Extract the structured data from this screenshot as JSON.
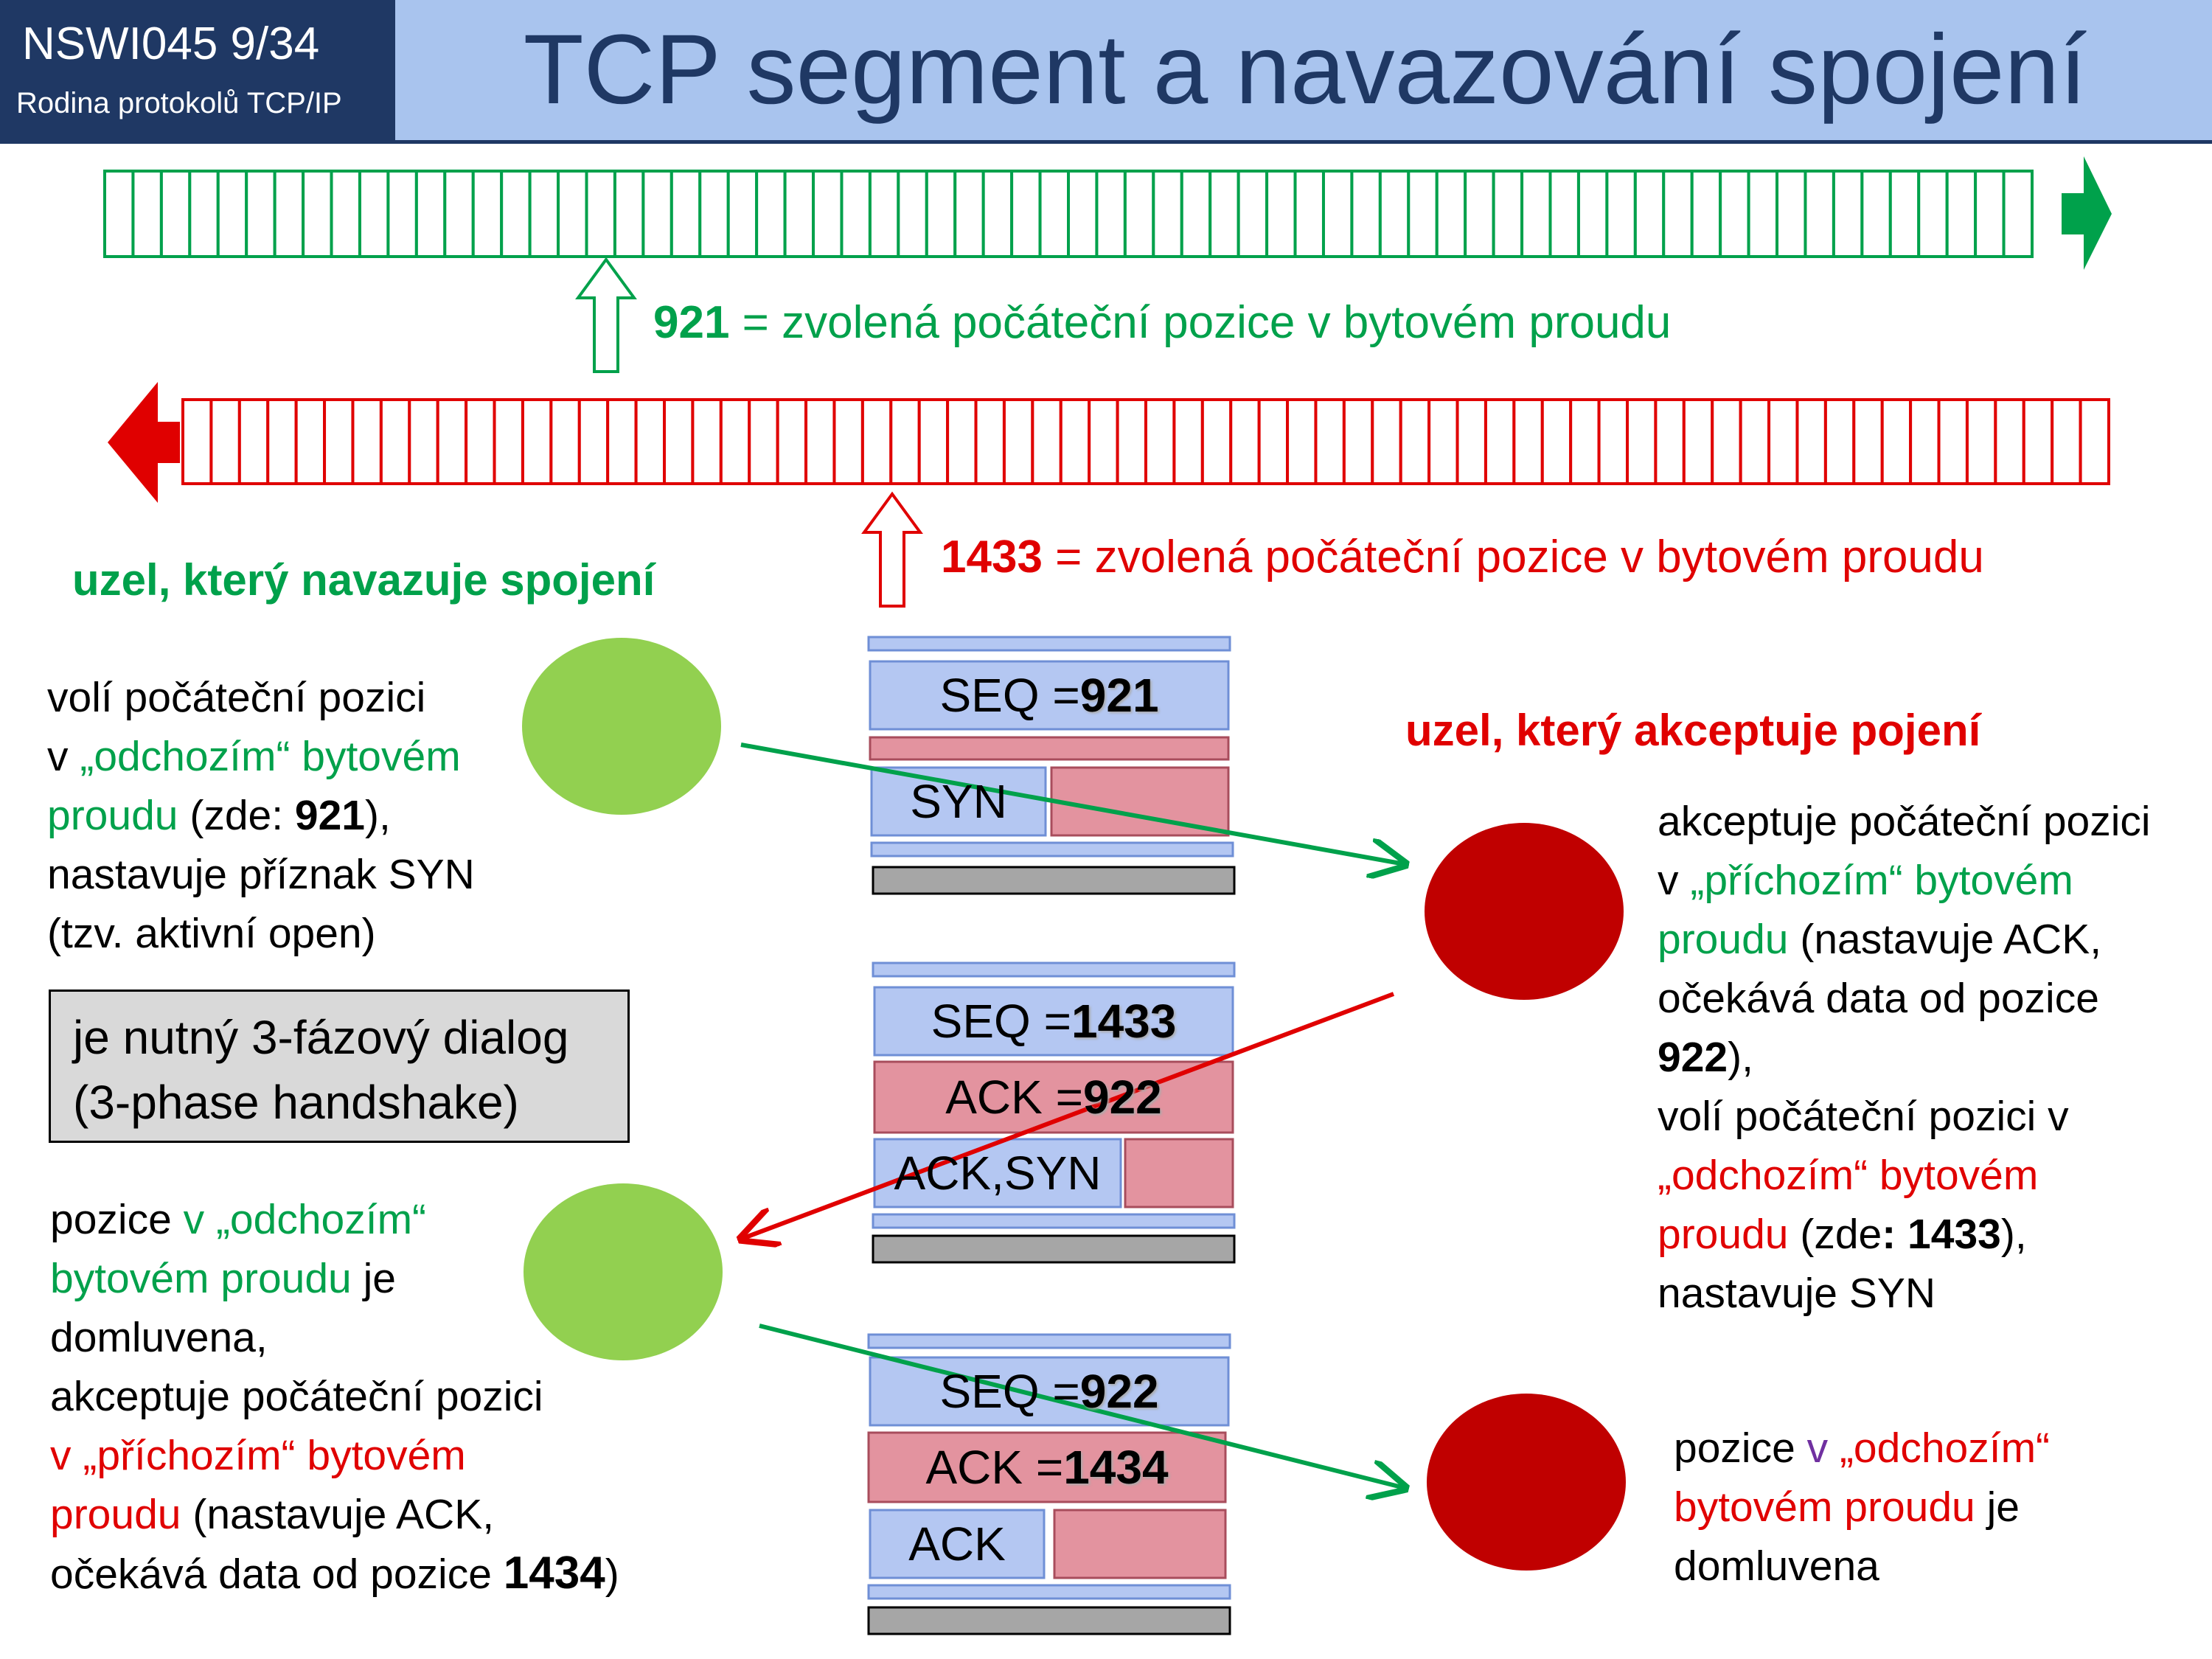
{
  "header": {
    "course_code": "NSWI045   9/34",
    "course_subtitle": "Rodina protokolů TCP/IP",
    "title": "TCP segment a navazování spojení"
  },
  "colors": {
    "green": "#00a14b",
    "red": "#e00000",
    "navy": "#1f3864",
    "header_blue": "#a9c4ee",
    "seg_blue": "#b4c7f2",
    "seg_pink": "#e3939f",
    "seg_gray": "#a6a6a6",
    "node_green": "#92d050",
    "node_red": "#c00000"
  },
  "streams": {
    "outgoing": {
      "num": "921",
      "caption": " = zvolená počáteční pozice v bytovém proudu",
      "direction": "right"
    },
    "incoming": {
      "num": "1433",
      "caption": " = zvolená počáteční pozice v bytovém proudu",
      "direction": "left"
    }
  },
  "left_heading": "uzel, který navazuje spojení",
  "right_heading": "uzel, který akceptuje pojení",
  "handshake_box": {
    "line1": "je nutný 3-fázový dialog",
    "line2": "(3-phase handshake)"
  },
  "left_text1": {
    "l1": "volí počáteční pozici",
    "l2a": "v ",
    "l2b": "„odchozím“ bytovém",
    "l3a": "proudu",
    "l3b": " (zde: ",
    "l3c": "921",
    "l3d": "),",
    "l4": "nastavuje příznak SYN",
    "l5": "(tzv. aktivní open)"
  },
  "left_text2": {
    "l1a": "pozice ",
    "l1b": "v „odchozím“",
    "l2a": "bytovém proudu",
    "l2b": " je",
    "l3": "domluvena,",
    "l4": "akceptuje počáteční pozici",
    "l5": "v „příchozím“ bytovém",
    "l6a": "proudu",
    "l6b": " (nastavuje ACK,",
    "l7a": "očekává data od pozice  ",
    "l7b": "1434",
    "l7c": ")"
  },
  "right_text1": {
    "l1": "akceptuje počáteční pozici",
    "l2a": "v ",
    "l2b": "„příchozím“ bytovém",
    "l3a": "proudu",
    "l3b": " (nastavuje ACK,",
    "l4": "očekává data od pozice",
    "l5a": "922",
    "l5b": "),",
    "l6": "volí počáteční pozici v",
    "l7": "„odchozím“ bytovém",
    "l8a": "proudu",
    "l8b": " (zde",
    "l8c": ": 1433",
    "l8d": "),",
    "l9": "nastavuje SYN"
  },
  "right_text2": {
    "l1a": "pozice ",
    "l1b": "v",
    "l1c": " „odchozím“",
    "l2a": "bytovém proudu",
    "l2b": " je",
    "l3": "domluvena"
  },
  "segments": {
    "seg1": {
      "seq_label": "SEQ = ",
      "seq_value": "921",
      "flags": "SYN"
    },
    "seg2": {
      "seq_label": "SEQ = ",
      "seq_value": "1433",
      "ack_label": "ACK = ",
      "ack_value": "922",
      "flags": "ACK,SYN"
    },
    "seg3": {
      "seq_label": "SEQ = ",
      "seq_value": "922",
      "ack_label": "ACK = ",
      "ack_value": "1434",
      "flags": "ACK"
    }
  }
}
